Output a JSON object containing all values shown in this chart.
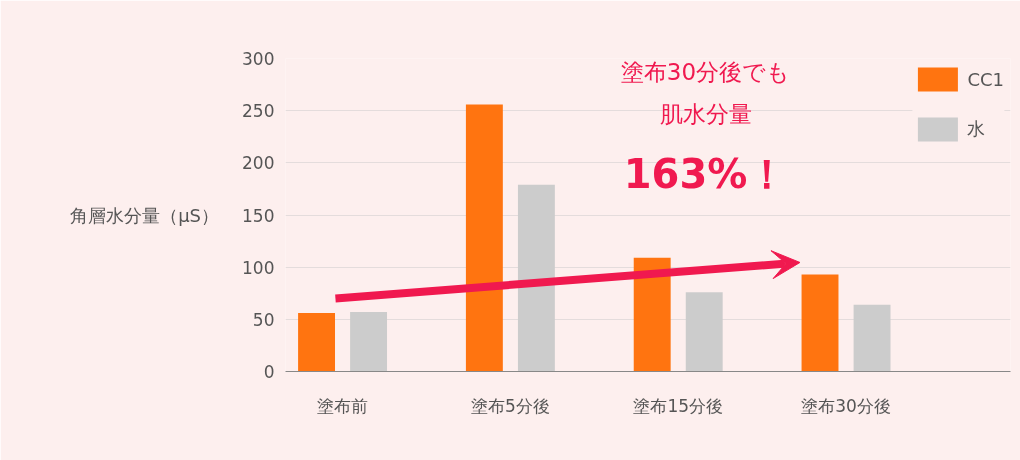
{
  "chart_data": {
    "type": "bar",
    "ylabel": "角層水分量（μS）",
    "categories": [
      "塗布前",
      "塗布5分後",
      "塗布15分後",
      "塗布30分後"
    ],
    "series": [
      {
        "name": "CC1",
        "color": "#ff7410",
        "values": [
          56,
          256,
          109,
          93
        ]
      },
      {
        "name": "水",
        "color": "#cccccc",
        "values": [
          57,
          179,
          76,
          64
        ]
      }
    ],
    "ylim": [
      0,
      300
    ],
    "yticks": [
      0,
      50,
      100,
      150,
      200,
      250,
      300
    ],
    "grid": "y",
    "legend": "top right",
    "annotations": [
      "塗布30分後でも",
      "肌水分量",
      "163%！"
    ]
  }
}
